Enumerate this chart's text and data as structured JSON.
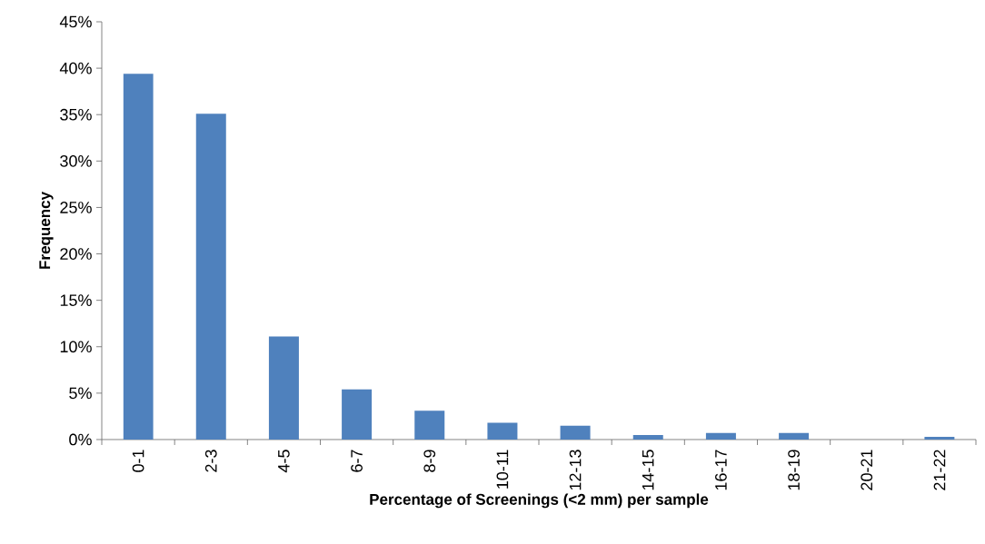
{
  "chart_data": {
    "type": "bar",
    "xlabel": "Percentage of Screenings (<2 mm) per sample",
    "ylabel": "Frequency",
    "categories": [
      "0-1",
      "2-3",
      "4-5",
      "6-7",
      "8-9",
      "10-11",
      "12-13",
      "14-15",
      "16-17",
      "18-19",
      "20-21",
      "21-22"
    ],
    "values": [
      39.4,
      35.1,
      11.1,
      5.4,
      3.1,
      1.8,
      1.5,
      0.5,
      0.7,
      0.7,
      0,
      0.3
    ],
    "color": "#4f81bd",
    "ylim": [
      0,
      45
    ],
    "yticks": [
      {
        "value": 0,
        "label": "0%"
      },
      {
        "value": 5,
        "label": "5%"
      },
      {
        "value": 10,
        "label": "10%"
      },
      {
        "value": 15,
        "label": "15%"
      },
      {
        "value": 20,
        "label": "20%"
      },
      {
        "value": 25,
        "label": "25%"
      },
      {
        "value": 30,
        "label": "30%"
      },
      {
        "value": 35,
        "label": "35%"
      },
      {
        "value": 40,
        "label": "40%"
      },
      {
        "value": 45,
        "label": "45%"
      }
    ],
    "grid": false
  }
}
